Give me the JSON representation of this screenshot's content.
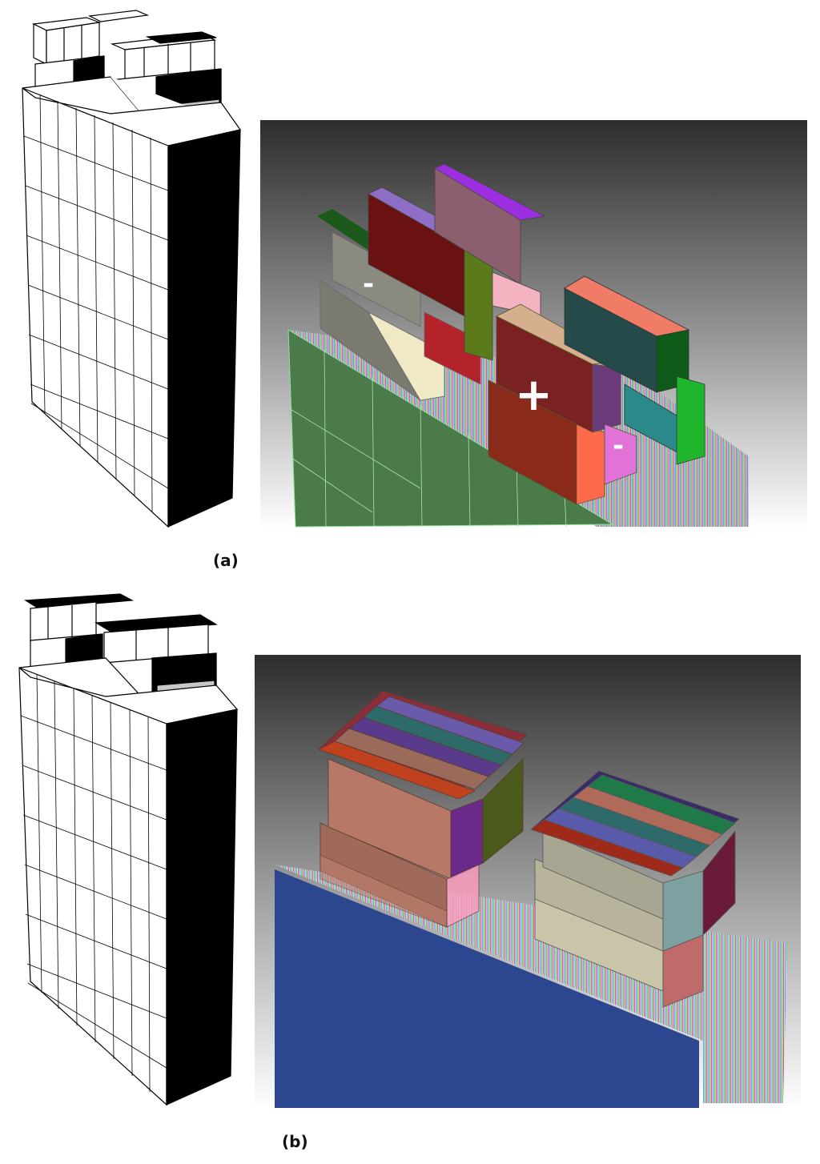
{
  "panel_a": {
    "caption": "(a)",
    "render_labels": {
      "neg_left": "-",
      "positive": "+",
      "neg_right": "-"
    },
    "colors": {
      "bg_top": "#2f2f2f",
      "bg_bottom": "#ffffff",
      "cell_face": "#4b7a4b",
      "tab_left": "#f4efd2",
      "tab_mid": "#a3232a",
      "tab_right": "#ff6a4d",
      "tab_far": "#1fb52c"
    }
  },
  "panel_b": {
    "caption": "(b)",
    "colors": {
      "bg_top": "#2f2f2f",
      "bg_bottom": "#ffffff",
      "cell_face": "#2c4690",
      "tab_left": "#b87866",
      "tab_right": "#a8a693"
    }
  }
}
